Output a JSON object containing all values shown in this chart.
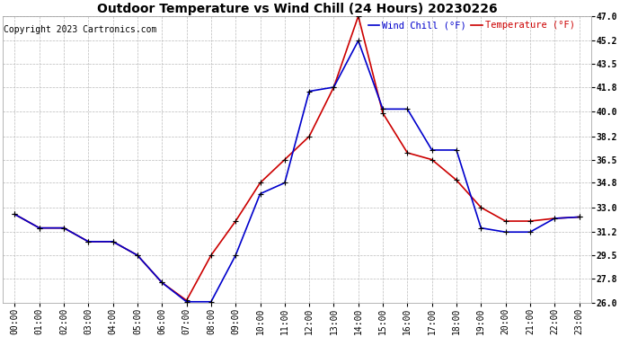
{
  "title": "Outdoor Temperature vs Wind Chill (24 Hours) 20230226",
  "copyright": "Copyright 2023 Cartronics.com",
  "legend_wind_chill": "Wind Chill (°F)",
  "legend_temperature": "Temperature (°F)",
  "hours": [
    "00:00",
    "01:00",
    "02:00",
    "03:00",
    "04:00",
    "05:00",
    "06:00",
    "07:00",
    "08:00",
    "09:00",
    "10:00",
    "11:00",
    "12:00",
    "13:00",
    "14:00",
    "15:00",
    "16:00",
    "17:00",
    "18:00",
    "19:00",
    "20:00",
    "21:00",
    "22:00",
    "23:00"
  ],
  "temperature": [
    32.5,
    31.5,
    31.5,
    30.5,
    30.5,
    29.5,
    27.5,
    26.2,
    29.5,
    32.0,
    34.8,
    36.5,
    38.2,
    41.8,
    47.0,
    39.9,
    37.0,
    36.5,
    35.0,
    33.0,
    32.0,
    32.0,
    32.2,
    32.3
  ],
  "wind_chill": [
    32.5,
    31.5,
    31.5,
    30.5,
    30.5,
    29.5,
    27.5,
    26.1,
    26.1,
    29.5,
    34.0,
    34.8,
    41.5,
    41.8,
    45.2,
    40.2,
    40.2,
    37.2,
    37.2,
    31.5,
    31.2,
    31.2,
    32.2,
    32.3
  ],
  "ylim": [
    26.0,
    47.0
  ],
  "yticks": [
    26.0,
    27.8,
    29.5,
    31.2,
    33.0,
    34.8,
    36.5,
    38.2,
    40.0,
    41.8,
    43.5,
    45.2,
    47.0
  ],
  "temp_color": "#cc0000",
  "wind_chill_color": "#0000cc",
  "marker_color": "#000000",
  "bg_color": "#ffffff",
  "grid_color": "#bbbbbb",
  "title_fontsize": 10,
  "copyright_fontsize": 7,
  "tick_fontsize": 7,
  "legend_fontsize": 7.5
}
